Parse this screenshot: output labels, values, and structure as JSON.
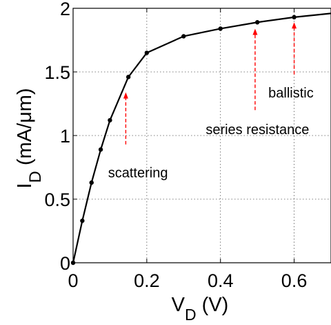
{
  "chart_data": {
    "type": "line",
    "title": "",
    "xlabel": {
      "main": "V",
      "sub": "D",
      "unit": " (V)"
    },
    "ylabel": {
      "main": "I",
      "sub": "D",
      "unit": " (mA/μm)"
    },
    "xlim": [
      0,
      0.7
    ],
    "ylim": [
      0,
      2
    ],
    "x_ticks": [
      0,
      0.2,
      0.4,
      0.6
    ],
    "x_tick_labels": [
      "0",
      "0.2",
      "0.4",
      "0.6"
    ],
    "y_ticks": [
      0,
      0.5,
      1,
      1.5,
      2
    ],
    "y_tick_labels": [
      "0",
      "0.5",
      "1",
      "1.5",
      "2"
    ],
    "grid": true,
    "series": [
      {
        "color": "#000000",
        "x": [
          0,
          0.025,
          0.05,
          0.075,
          0.1,
          0.15,
          0.2,
          0.3,
          0.4,
          0.5,
          0.6,
          0.7
        ],
        "y": [
          0,
          0.33,
          0.63,
          0.89,
          1.12,
          1.46,
          1.65,
          1.78,
          1.84,
          1.89,
          1.93,
          1.96
        ],
        "markers_x": [
          0,
          0.025,
          0.05,
          0.075,
          0.1,
          0.15,
          0.2,
          0.3,
          0.4,
          0.5,
          0.6
        ],
        "markers_y": [
          0,
          0.33,
          0.63,
          0.89,
          1.12,
          1.46,
          1.65,
          1.78,
          1.84,
          1.89,
          1.93
        ]
      }
    ],
    "annotations": [
      {
        "text": "scattering",
        "arrow_x": 0.143,
        "arrow_from_y": 0.93,
        "arrow_to_y": 1.34,
        "text_x": 0.095,
        "text_y": 0.67
      },
      {
        "text": "series resistance",
        "arrow_x": 0.494,
        "arrow_from_y": 1.2,
        "arrow_to_y": 1.84,
        "text_x": 0.36,
        "text_y": 1.01
      },
      {
        "text": "ballistic",
        "arrow_x": 0.6,
        "arrow_from_y": 1.48,
        "arrow_to_y": 1.89,
        "text_x": 0.53,
        "text_y": 1.3
      }
    ],
    "arrow_color": "#ff0000"
  }
}
